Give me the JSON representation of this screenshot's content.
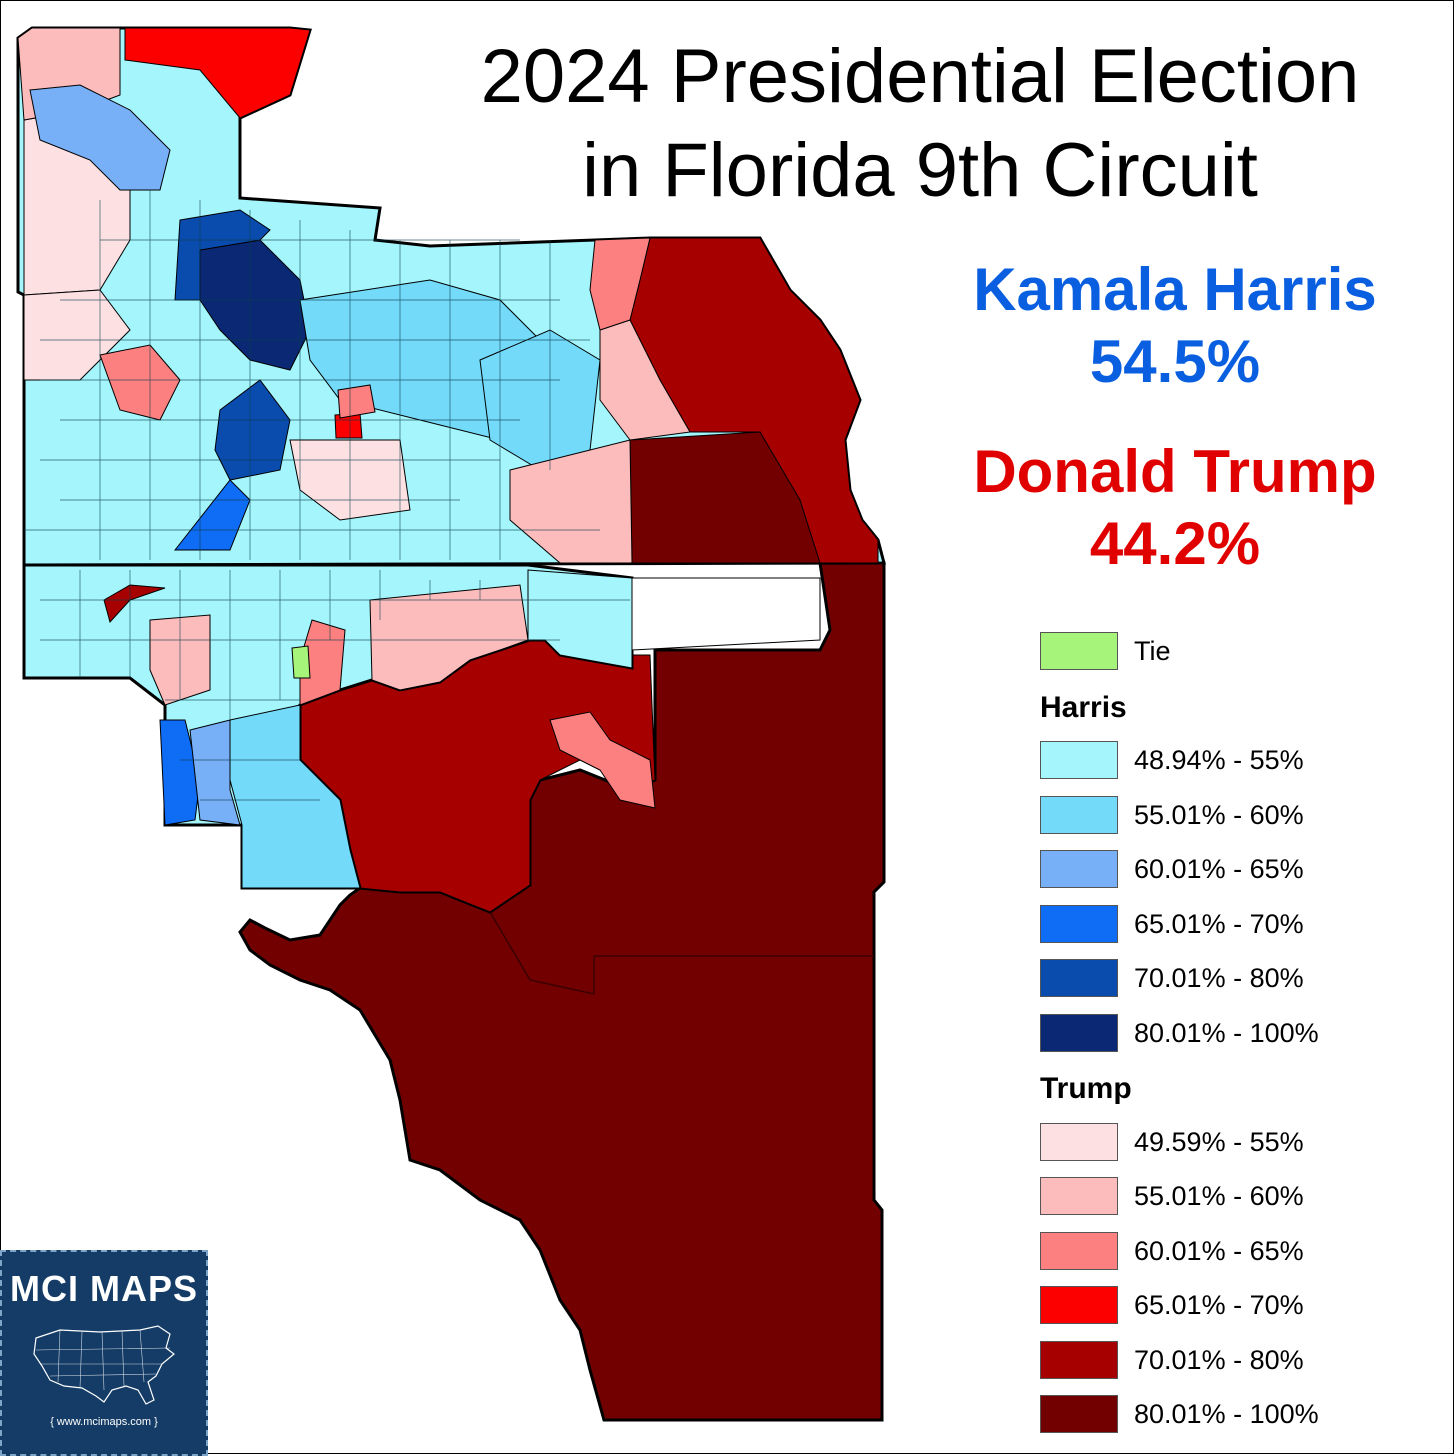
{
  "title": {
    "line1": "2024 Presidential Election",
    "line2": "in Florida 9th Circuit"
  },
  "results": {
    "harris": {
      "name": "Kamala Harris",
      "pct": "54.5%",
      "color": "#0a5fe0"
    },
    "trump": {
      "name": "Donald Trump",
      "pct": "44.2%",
      "color": "#e00000"
    }
  },
  "legend": {
    "tie": {
      "label": "Tie",
      "color": "#a6f57a"
    },
    "harris_heading": "Harris",
    "harris": [
      {
        "label": "48.94% - 55%",
        "color": "#a4f5fc"
      },
      {
        "label": "55.01% - 60%",
        "color": "#74dafa"
      },
      {
        "label": "60.01% - 65%",
        "color": "#78b0f8"
      },
      {
        "label": "65.01% - 70%",
        "color": "#0f6cf4"
      },
      {
        "label": "70.01% - 80%",
        "color": "#0a4cae"
      },
      {
        "label": "80.01% - 100%",
        "color": "#0a2873"
      }
    ],
    "trump_heading": "Trump",
    "trump": [
      {
        "label": "49.59% - 55%",
        "color": "#fde0e2"
      },
      {
        "label": "55.01% - 60%",
        "color": "#fcbcbc"
      },
      {
        "label": "60.01% - 65%",
        "color": "#fc8080"
      },
      {
        "label": "65.01% - 70%",
        "color": "#fc0000"
      },
      {
        "label": "70.01% - 80%",
        "color": "#a60000"
      },
      {
        "label": "80.01% - 100%",
        "color": "#720000"
      }
    ]
  },
  "logo": {
    "brand": "MCI MAPS",
    "url": "{ www.mcimaps.com }",
    "bg_color": "#143c66"
  }
}
